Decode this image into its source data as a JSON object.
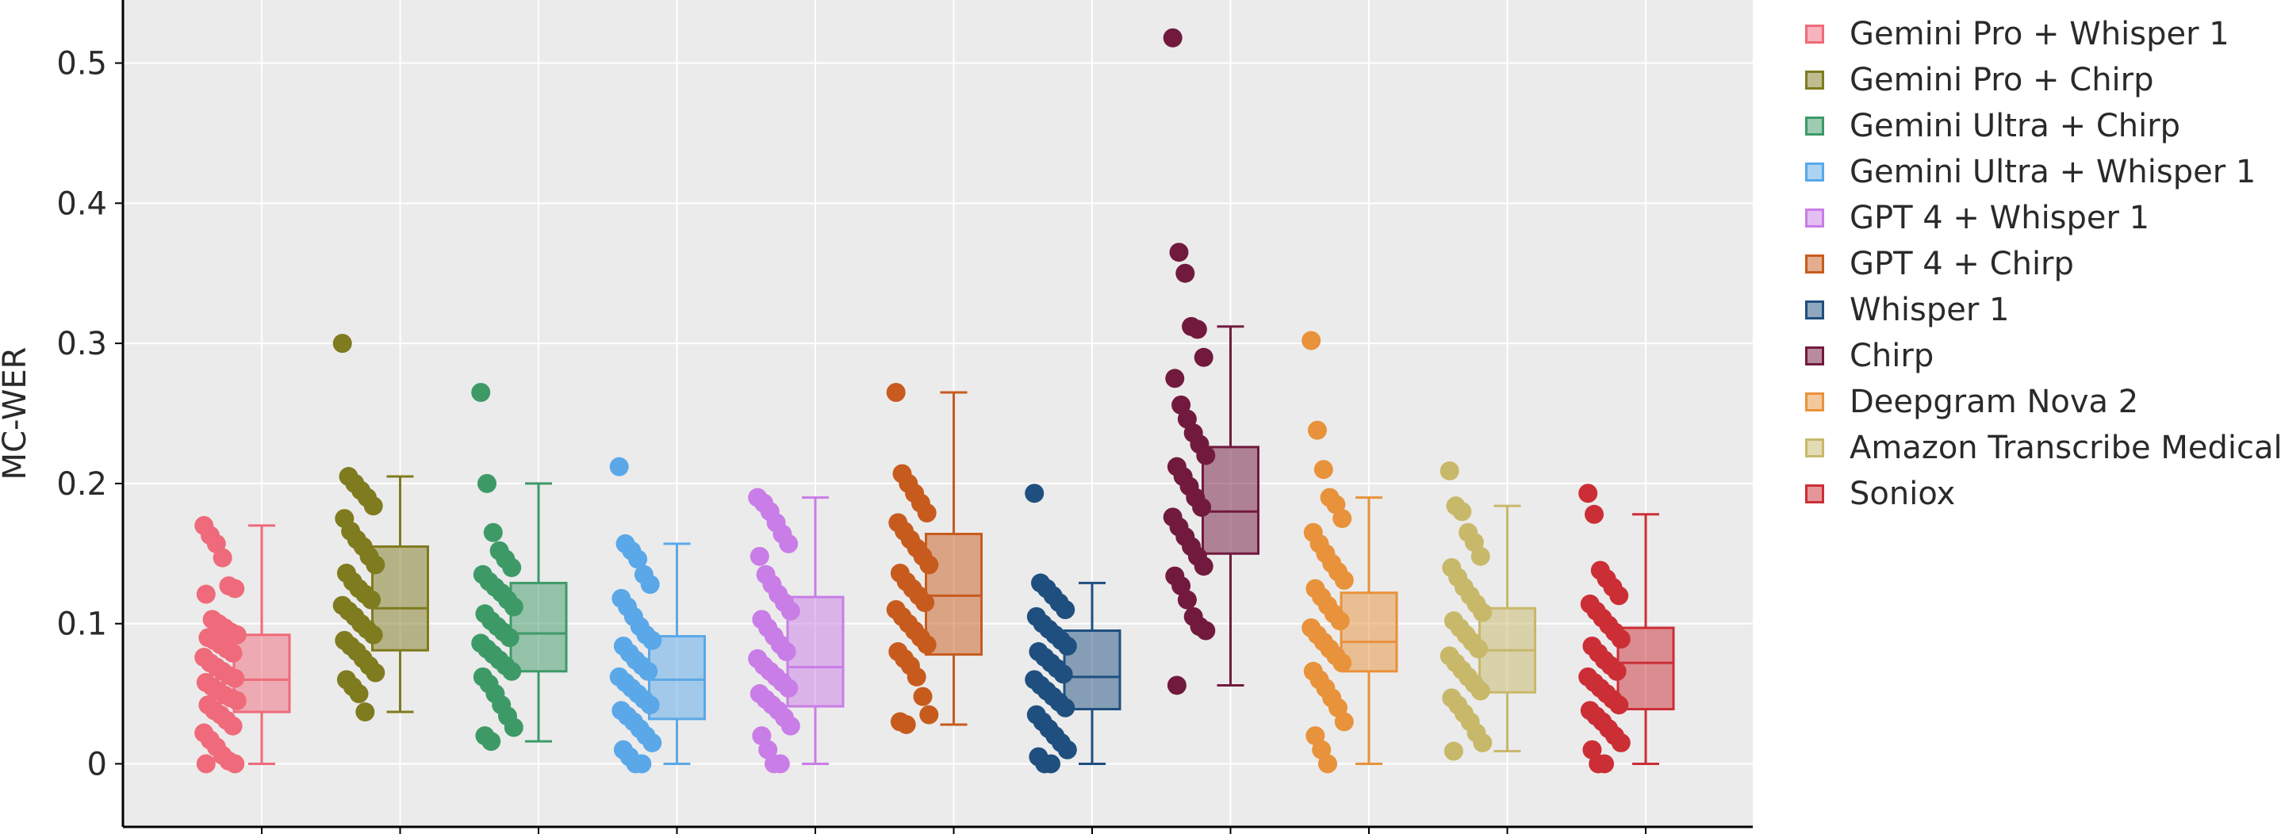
{
  "chart_data": {
    "type": "box",
    "title": "",
    "xlabel": "",
    "ylabel": "MC-WER",
    "ylim": [
      -0.045,
      0.545
    ],
    "yticks": [
      0,
      0.1,
      0.2,
      0.3,
      0.4,
      0.5
    ],
    "ytick_labels": [
      "0",
      "0.1",
      "0.2",
      "0.3",
      "0.4",
      "0.5"
    ],
    "grid": true,
    "legend_position": "right",
    "background": "#ebebeb",
    "series": [
      {
        "name": "Gemini Pro + Whisper 1",
        "color": "#ef6a7a",
        "min": 0.0,
        "q1": 0.037,
        "median": 0.06,
        "q3": 0.092,
        "max": 0.17,
        "outliers": [],
        "points": [
          0.17,
          0.163,
          0.157,
          0.147,
          0.127,
          0.125,
          0.121,
          0.103,
          0.1,
          0.097,
          0.094,
          0.092,
          0.09,
          0.088,
          0.085,
          0.082,
          0.079,
          0.076,
          0.072,
          0.069,
          0.066,
          0.063,
          0.061,
          0.058,
          0.055,
          0.052,
          0.049,
          0.047,
          0.045,
          0.042,
          0.038,
          0.035,
          0.031,
          0.027,
          0.022,
          0.017,
          0.012,
          0.006,
          0.002,
          0.0,
          0.0
        ]
      },
      {
        "name": "Gemini Pro + Chirp",
        "color": "#7f7b1f",
        "min": 0.037,
        "q1": 0.081,
        "median": 0.111,
        "q3": 0.155,
        "max": 0.205,
        "outliers": [
          0.3
        ],
        "points": [
          0.3,
          0.205,
          0.2,
          0.195,
          0.19,
          0.184,
          0.175,
          0.166,
          0.16,
          0.155,
          0.148,
          0.142,
          0.136,
          0.13,
          0.125,
          0.121,
          0.117,
          0.113,
          0.109,
          0.105,
          0.1,
          0.096,
          0.092,
          0.088,
          0.084,
          0.08,
          0.075,
          0.07,
          0.065,
          0.06,
          0.055,
          0.05,
          0.037
        ]
      },
      {
        "name": "Gemini Ultra + Chirp",
        "color": "#3d9a67",
        "min": 0.016,
        "q1": 0.066,
        "median": 0.093,
        "q3": 0.129,
        "max": 0.2,
        "outliers": [
          0.265
        ],
        "points": [
          0.265,
          0.2,
          0.165,
          0.152,
          0.146,
          0.14,
          0.135,
          0.13,
          0.126,
          0.122,
          0.117,
          0.112,
          0.107,
          0.102,
          0.098,
          0.094,
          0.09,
          0.086,
          0.082,
          0.078,
          0.074,
          0.07,
          0.066,
          0.062,
          0.057,
          0.05,
          0.042,
          0.034,
          0.026,
          0.02,
          0.016
        ]
      },
      {
        "name": "Gemini Ultra + Whisper 1",
        "color": "#5aa8e8",
        "min": 0.0,
        "q1": 0.032,
        "median": 0.06,
        "q3": 0.091,
        "max": 0.157,
        "outliers": [
          0.212
        ],
        "points": [
          0.212,
          0.157,
          0.152,
          0.146,
          0.135,
          0.128,
          0.118,
          0.112,
          0.105,
          0.098,
          0.092,
          0.088,
          0.084,
          0.079,
          0.074,
          0.07,
          0.066,
          0.062,
          0.058,
          0.054,
          0.05,
          0.046,
          0.042,
          0.038,
          0.034,
          0.03,
          0.025,
          0.02,
          0.015,
          0.01,
          0.005,
          0.0,
          0.0
        ]
      },
      {
        "name": "GPT 4 + Whisper 1",
        "color": "#c97de6",
        "min": 0.0,
        "q1": 0.041,
        "median": 0.069,
        "q3": 0.119,
        "max": 0.19,
        "outliers": [],
        "points": [
          0.19,
          0.186,
          0.18,
          0.172,
          0.164,
          0.157,
          0.148,
          0.135,
          0.128,
          0.121,
          0.115,
          0.109,
          0.103,
          0.097,
          0.091,
          0.085,
          0.08,
          0.075,
          0.07,
          0.066,
          0.062,
          0.058,
          0.054,
          0.05,
          0.046,
          0.042,
          0.038,
          0.033,
          0.027,
          0.02,
          0.01,
          0.0,
          0.0
        ]
      },
      {
        "name": "GPT 4 + Chirp",
        "color": "#c75b1e",
        "min": 0.028,
        "q1": 0.078,
        "median": 0.12,
        "q3": 0.164,
        "max": 0.265,
        "outliers": [],
        "points": [
          0.265,
          0.207,
          0.2,
          0.193,
          0.186,
          0.179,
          0.172,
          0.166,
          0.16,
          0.154,
          0.148,
          0.142,
          0.136,
          0.13,
          0.125,
          0.12,
          0.115,
          0.11,
          0.105,
          0.1,
          0.095,
          0.09,
          0.085,
          0.08,
          0.075,
          0.07,
          0.062,
          0.048,
          0.035,
          0.03,
          0.028
        ]
      },
      {
        "name": "Whisper 1",
        "color": "#1f4f7f",
        "min": 0.0,
        "q1": 0.039,
        "median": 0.062,
        "q3": 0.095,
        "max": 0.129,
        "outliers": [
          0.193
        ],
        "points": [
          0.193,
          0.129,
          0.125,
          0.12,
          0.115,
          0.11,
          0.105,
          0.1,
          0.096,
          0.092,
          0.088,
          0.084,
          0.08,
          0.076,
          0.072,
          0.068,
          0.064,
          0.06,
          0.056,
          0.052,
          0.048,
          0.044,
          0.04,
          0.035,
          0.03,
          0.025,
          0.02,
          0.015,
          0.01,
          0.005,
          0.0,
          0.0
        ]
      },
      {
        "name": "Chirp",
        "color": "#721a3e",
        "min": 0.056,
        "q1": 0.15,
        "median": 0.18,
        "q3": 0.226,
        "max": 0.312,
        "outliers": [
          0.518,
          0.365,
          0.35
        ],
        "points": [
          0.518,
          0.365,
          0.35,
          0.312,
          0.31,
          0.29,
          0.275,
          0.256,
          0.246,
          0.236,
          0.228,
          0.22,
          0.212,
          0.205,
          0.198,
          0.19,
          0.183,
          0.176,
          0.169,
          0.162,
          0.155,
          0.148,
          0.141,
          0.134,
          0.127,
          0.117,
          0.105,
          0.098,
          0.095,
          0.056
        ]
      },
      {
        "name": "Deepgram Nova 2",
        "color": "#e8923b",
        "min": 0.0,
        "q1": 0.066,
        "median": 0.087,
        "q3": 0.122,
        "max": 0.19,
        "outliers": [
          0.302,
          0.238
        ],
        "points": [
          0.302,
          0.238,
          0.21,
          0.19,
          0.185,
          0.175,
          0.165,
          0.157,
          0.15,
          0.143,
          0.137,
          0.131,
          0.125,
          0.119,
          0.113,
          0.107,
          0.102,
          0.097,
          0.092,
          0.087,
          0.082,
          0.077,
          0.072,
          0.066,
          0.06,
          0.054,
          0.047,
          0.04,
          0.03,
          0.02,
          0.01,
          0.0
        ]
      },
      {
        "name": "Amazon Transcribe Medical",
        "color": "#c8b86a",
        "min": 0.009,
        "q1": 0.051,
        "median": 0.081,
        "q3": 0.111,
        "max": 0.184,
        "outliers": [
          0.209
        ],
        "points": [
          0.209,
          0.184,
          0.18,
          0.165,
          0.158,
          0.148,
          0.14,
          0.133,
          0.126,
          0.12,
          0.114,
          0.108,
          0.102,
          0.097,
          0.092,
          0.087,
          0.082,
          0.077,
          0.072,
          0.067,
          0.062,
          0.057,
          0.052,
          0.047,
          0.042,
          0.036,
          0.03,
          0.022,
          0.015,
          0.009
        ]
      },
      {
        "name": "Soniox",
        "color": "#cc2e36",
        "min": 0.0,
        "q1": 0.039,
        "median": 0.072,
        "q3": 0.097,
        "max": 0.178,
        "outliers": [
          0.193
        ],
        "points": [
          0.193,
          0.178,
          0.138,
          0.132,
          0.126,
          0.12,
          0.114,
          0.109,
          0.104,
          0.099,
          0.094,
          0.089,
          0.084,
          0.079,
          0.074,
          0.07,
          0.066,
          0.062,
          0.058,
          0.054,
          0.05,
          0.046,
          0.042,
          0.038,
          0.034,
          0.03,
          0.025,
          0.02,
          0.015,
          0.01,
          0.0,
          0.0
        ]
      }
    ]
  }
}
